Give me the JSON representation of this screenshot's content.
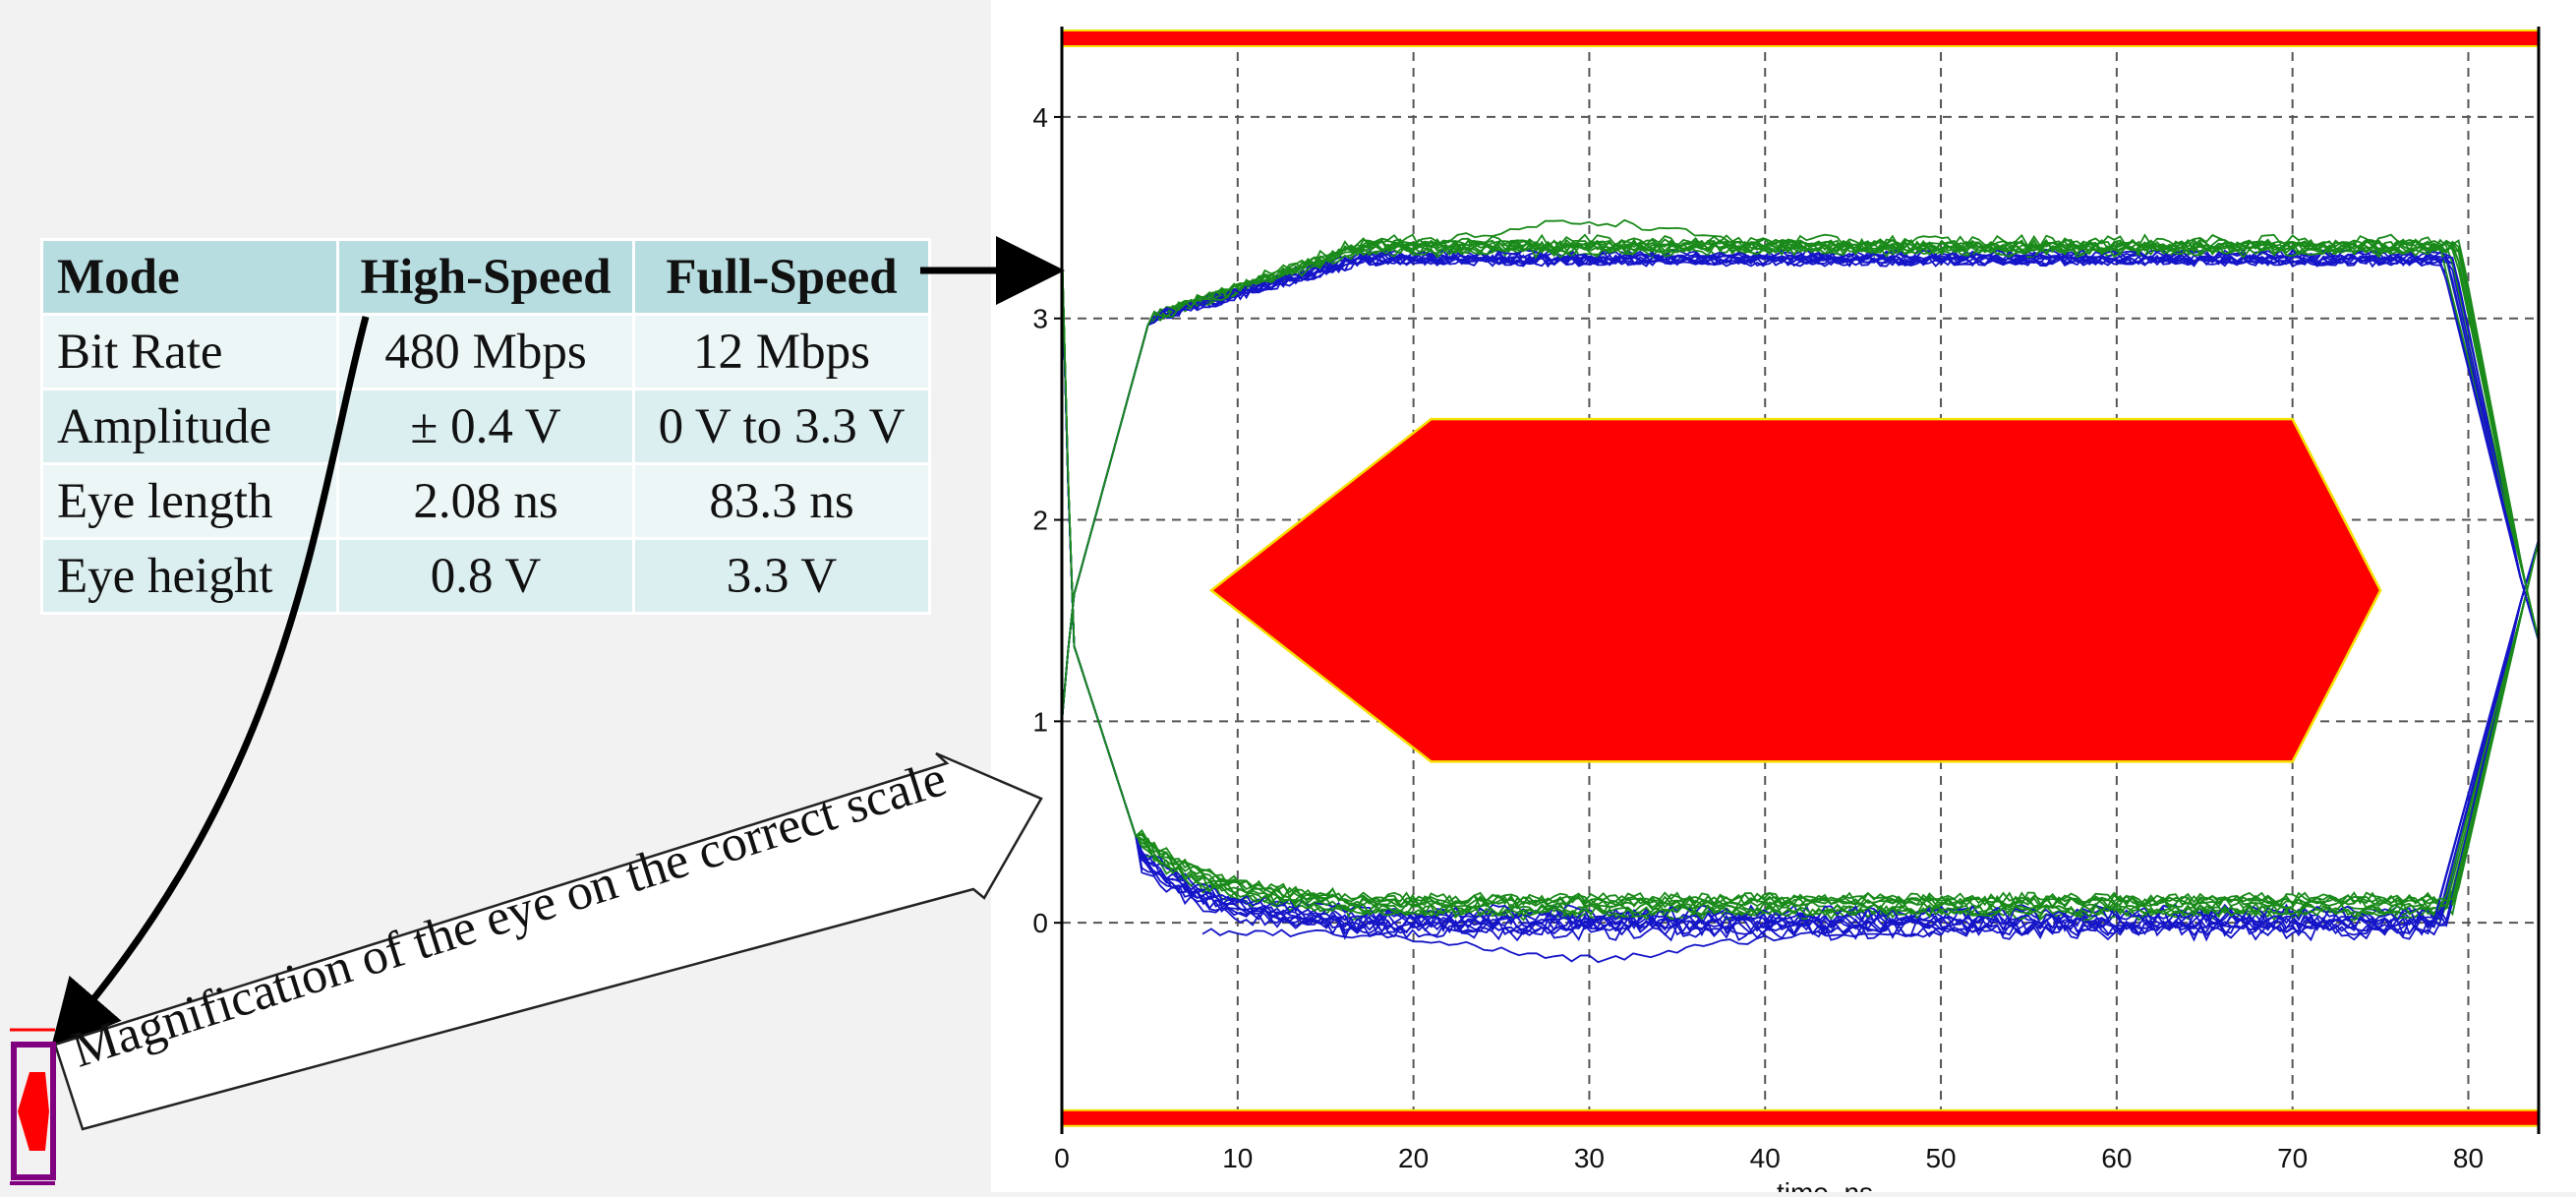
{
  "table": {
    "headers": [
      "Mode",
      "High-Speed",
      "Full-Speed"
    ],
    "rows": [
      [
        "Bit Rate",
        "480 Mbps",
        "12 Mbps"
      ],
      [
        "Amplitude",
        "± 0.4 V",
        "0 V to 3.3 V"
      ],
      [
        "Eye length",
        "2.08 ns",
        "83.3 ns"
      ],
      [
        "Eye height",
        "0.8 V",
        "3.3 V"
      ]
    ]
  },
  "annotation": {
    "caption": "Magnification of the eye on the correct scale"
  },
  "chart_data": {
    "type": "line",
    "title": "",
    "xlabel": "time, ns",
    "ylabel": "",
    "xlim": [
      0,
      84
    ],
    "ylim": [
      -1,
      4.4
    ],
    "x_ticks": [
      "0",
      "10",
      "20",
      "30",
      "40",
      "50",
      "60",
      "70",
      "80"
    ],
    "y_ticks": [
      "0",
      "1",
      "2",
      "3",
      "4"
    ],
    "grid": true,
    "series": [
      {
        "color": "#1515c8",
        "description_type": "eye traces",
        "high_level_v": 3.3,
        "low_level_v": 0.0
      },
      {
        "color": "#1a8a1a",
        "description_type": "eye traces",
        "high_level_v": 3.35,
        "low_level_v": 0.08
      }
    ],
    "eye_mask": {
      "color": "#ff0000",
      "polygon": [
        [
          8.5,
          1.65
        ],
        [
          21,
          2.5
        ],
        [
          70,
          2.5
        ],
        [
          75,
          1.65
        ],
        [
          70,
          0.8
        ],
        [
          21,
          0.8
        ]
      ]
    },
    "limit_bands": {
      "color": "#ff0000",
      "upper_v": 4.4,
      "lower_v": -0.95
    },
    "colors": {
      "mask": "#ff0000",
      "trace_blue": "#1515c8",
      "trace_green": "#1a8a1a",
      "mini_eye_outline": "#800080"
    }
  }
}
